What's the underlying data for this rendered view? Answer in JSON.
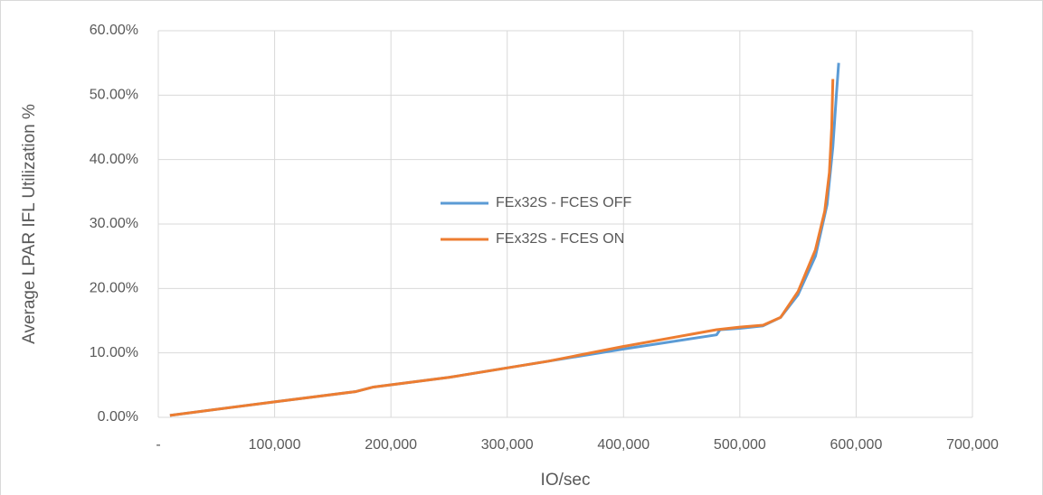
{
  "chart_data": {
    "type": "line",
    "x_label": "IO/sec",
    "y_label": "Average LPAR IFL Utilization %",
    "xlim": [
      0,
      700000
    ],
    "xticks": [
      {
        "value": 0,
        "label": "-"
      },
      {
        "value": 100000,
        "label": "100,000"
      },
      {
        "value": 200000,
        "label": "200,000"
      },
      {
        "value": 300000,
        "label": "300,000"
      },
      {
        "value": 400000,
        "label": "400,000"
      },
      {
        "value": 500000,
        "label": "500,000"
      },
      {
        "value": 600000,
        "label": "600,000"
      },
      {
        "value": 700000,
        "label": "700,000"
      }
    ],
    "ylim": [
      0,
      60
    ],
    "yticks": [
      {
        "value": 0,
        "label": "0.00%"
      },
      {
        "value": 10,
        "label": "10.00%"
      },
      {
        "value": 20,
        "label": "20.00%"
      },
      {
        "value": 30,
        "label": "30.00%"
      },
      {
        "value": 40,
        "label": "40.00%"
      },
      {
        "value": 50,
        "label": "50.00%"
      },
      {
        "value": 60,
        "label": "60.00%"
      }
    ],
    "grid": true,
    "series": [
      {
        "name": "FEx32S - FCES OFF",
        "color": "#5b9bd5",
        "x": [
          10000,
          100000,
          170000,
          185000,
          250000,
          335000,
          400000,
          480000,
          483000,
          500000,
          520000,
          535000,
          550000,
          565000,
          575000,
          580000,
          583000,
          585000
        ],
        "values": [
          0.3,
          2.4,
          4.0,
          4.7,
          6.2,
          8.7,
          10.6,
          12.8,
          13.6,
          13.8,
          14.2,
          15.5,
          19,
          25,
          33,
          42,
          50,
          55
        ]
      },
      {
        "name": "FEx32S - FCES ON",
        "color": "#ed7d31",
        "x": [
          10000,
          100000,
          170000,
          185000,
          250000,
          335000,
          400000,
          480000,
          500000,
          520000,
          535000,
          550000,
          565000,
          573000,
          577000,
          579000,
          580000
        ],
        "values": [
          0.3,
          2.4,
          4.0,
          4.7,
          6.2,
          8.7,
          11.0,
          13.6,
          14.0,
          14.3,
          15.5,
          19.5,
          26,
          32,
          38,
          45,
          52.5
        ]
      }
    ]
  }
}
